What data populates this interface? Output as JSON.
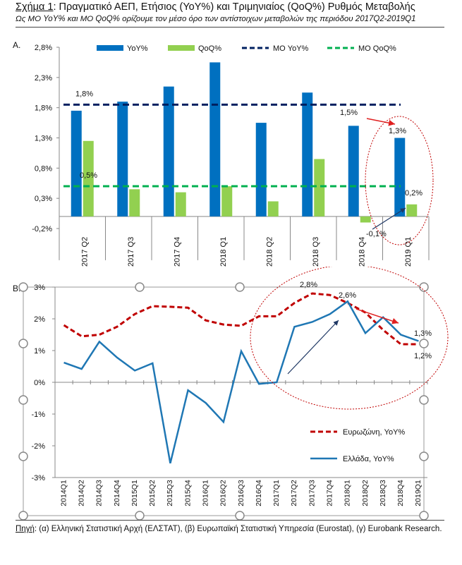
{
  "header": {
    "figure_label": "Σχήμα 1",
    "title_rest": ": Πραγματικό ΑΕΠ, Ετήσιος (YoY%) και Τριμηνιαίος (QoQ%) Ρυθμός Μεταβολής",
    "subtitle": "Ως ΜΟ YoY% και ΜΟ QoQ% ορίζουμε τον μέσο όρο των αντίστοιχων μεταβολών της περιόδου 2017Q2-2019Q1"
  },
  "panels": {
    "a_label": "A.",
    "b_label": "B."
  },
  "source": {
    "label": "Πηγή",
    "text": ": (α) Ελληνική Στατιστική Αρχή (ΕΛΣΤΑΤ), (β) Ευρωπαϊκή Στατιστική Υπηρεσία (Eurostat), (γ) Eurobank Research."
  },
  "colors": {
    "yoy": "#0070C0",
    "qoq": "#92D050",
    "avg_yoy": "#002060",
    "avg_qoq": "#00B050",
    "euro": "#C00000",
    "greece": "#1F77B4",
    "red_arrow": "#E02020",
    "dark_arrow": "#1F3864"
  },
  "chart_data": [
    {
      "type": "bar",
      "categories": [
        "2017 Q2",
        "2017 Q3",
        "2017 Q4",
        "2018 Q1",
        "2018 Q2",
        "2018 Q3",
        "2018 Q4",
        "2019 Q1"
      ],
      "series": [
        {
          "name": "YoY%",
          "values": [
            1.75,
            1.9,
            2.15,
            2.55,
            1.55,
            2.05,
            1.5,
            1.3
          ]
        },
        {
          "name": "QoQ%",
          "values": [
            1.25,
            0.45,
            0.4,
            0.5,
            0.25,
            0.95,
            -0.1,
            0.2
          ]
        },
        {
          "name": "ΜΟ YoY%",
          "line": true,
          "value": 1.85,
          "value_label": "1,8%"
        },
        {
          "name": "ΜΟ QoQ%",
          "line": true,
          "value": 0.5,
          "value_label": "0,5%"
        }
      ],
      "y_ticks": [
        "2,8%",
        "2,3%",
        "1,8%",
        "1,3%",
        "0,8%",
        "0,3%",
        "-0,2%"
      ],
      "ylim": [
        -0.2,
        2.8
      ],
      "annotations": [
        "1,5%",
        "1,3%",
        "0,2%",
        "-0,1%"
      ],
      "legend_position": "top"
    },
    {
      "type": "line",
      "x": [
        "2014Q1",
        "2014Q2",
        "2014Q3",
        "2014Q4",
        "2015Q1",
        "2015Q2",
        "2015Q3",
        "2015Q4",
        "2016Q1",
        "2016Q2",
        "2016Q3",
        "2016Q4",
        "2017Q1",
        "2017Q2",
        "2017Q3",
        "2017Q4",
        "2018Q1",
        "2018Q2",
        "2018Q3",
        "2018Q4",
        "2019Q1"
      ],
      "series": [
        {
          "name": "Ευρωζώνη, YoY%",
          "values": [
            1.8,
            1.45,
            1.5,
            1.75,
            2.15,
            2.4,
            2.38,
            2.35,
            1.95,
            1.82,
            1.78,
            2.08,
            2.08,
            2.5,
            2.8,
            2.75,
            2.5,
            2.2,
            1.65,
            1.2,
            1.2
          ]
        },
        {
          "name": "Ελλάδα, YoY%",
          "values": [
            0.62,
            0.42,
            1.28,
            0.78,
            0.37,
            0.6,
            -2.55,
            -0.25,
            -0.65,
            -1.25,
            0.98,
            -0.05,
            0.0,
            1.75,
            1.9,
            2.15,
            2.55,
            1.55,
            2.05,
            1.5,
            1.3
          ]
        }
      ],
      "y_ticks": [
        "3%",
        "2%",
        "1%",
        "0%",
        "-1%",
        "-2%",
        "-3%"
      ],
      "ylim": [
        -3,
        3
      ],
      "annotations": [
        "2,8%",
        "2,6%",
        "1,3%",
        "1,2%"
      ],
      "legend_position": "bottom-right"
    }
  ]
}
